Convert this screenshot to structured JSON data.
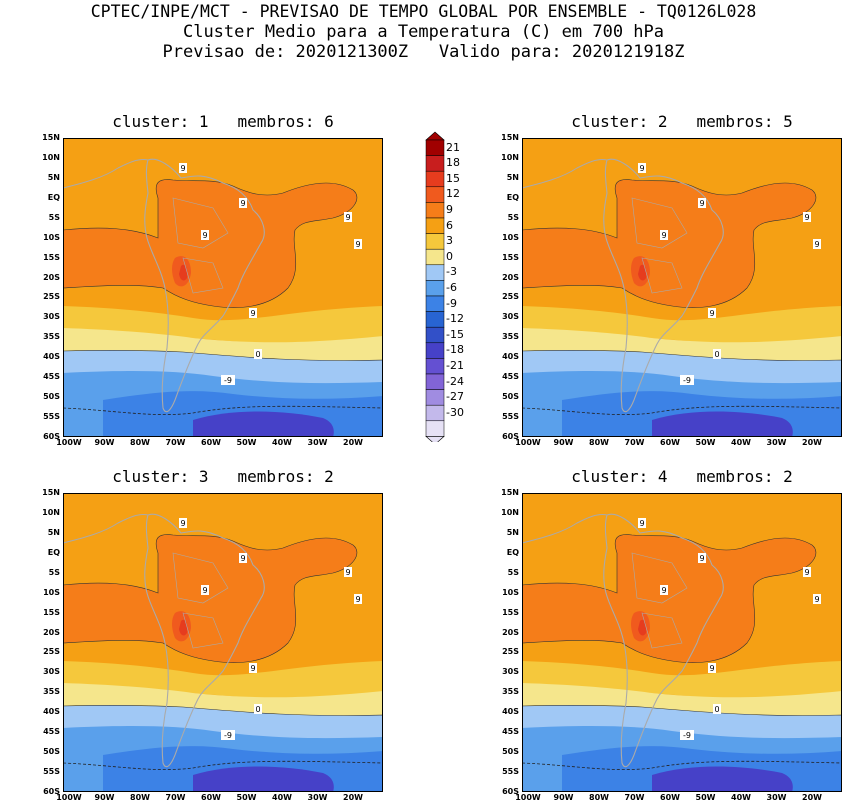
{
  "header": {
    "line1": "CPTEC/INPE/MCT - PREVISAO DE TEMPO GLOBAL POR ENSEMBLE - TQ0126L028",
    "line2": "Cluster Medio para a Temperatura (C) em 700 hPa",
    "line3": "Previsao de: 2020121300Z   Valido para: 2020121918Z"
  },
  "map": {
    "lat_labels": [
      "15N",
      "10N",
      "5N",
      "EQ",
      "5S",
      "10S",
      "15S",
      "20S",
      "25S",
      "30S",
      "35S",
      "40S",
      "45S",
      "50S",
      "55S",
      "60S"
    ],
    "lon_labels": [
      "100W",
      "90W",
      "80W",
      "70W",
      "60W",
      "50W",
      "40W",
      "30W",
      "20W"
    ]
  },
  "panels": [
    {
      "title": "cluster: 1   membros: 6",
      "labels": {
        "a": "9",
        "b": "9",
        "c": "9",
        "d": "9",
        "e": "9",
        "f": "9",
        "g": "0",
        "h": "-9"
      }
    },
    {
      "title": "cluster: 2   membros: 5",
      "labels": {
        "a": "9",
        "b": "9",
        "c": "9",
        "d": "9",
        "e": "9",
        "f": "9",
        "g": "0",
        "h": "-9"
      }
    },
    {
      "title": "cluster: 3   membros: 2",
      "labels": {
        "a": "9",
        "b": "9",
        "c": "9",
        "d": "9",
        "e": "9",
        "f": "9",
        "g": "0",
        "h": "-9"
      }
    },
    {
      "title": "cluster: 4   membros: 2",
      "labels": {
        "a": "9",
        "b": "9",
        "c": "9",
        "d": "9",
        "e": "9",
        "f": "9",
        "g": "0",
        "h": "-9"
      }
    }
  ],
  "colorbar": {
    "labels": [
      "21",
      "18",
      "15",
      "12",
      "9",
      "6",
      "3",
      "0",
      "-3",
      "-6",
      "-9",
      "-12",
      "-15",
      "-18",
      "-21",
      "-24",
      "-27",
      "-30"
    ],
    "colors": [
      "#a00000",
      "#c81e1e",
      "#e63c1e",
      "#f05a1e",
      "#f57d19",
      "#f5a014",
      "#f5c83c",
      "#f5e68c",
      "#a0c8f5",
      "#5aa0eb",
      "#3c82e6",
      "#2864d2",
      "#3250c8",
      "#4641c8",
      "#6450d2",
      "#8264d7",
      "#a08ce1",
      "#c3b9eb",
      "#e6e1f5"
    ]
  }
}
